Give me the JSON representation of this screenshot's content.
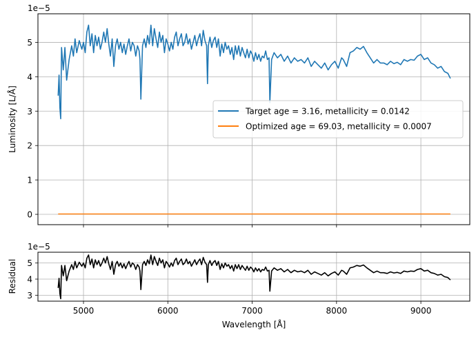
{
  "chart_data": [
    {
      "type": "line",
      "panel": "top",
      "ylabel": "Luminosity [L/Å]",
      "xlabel": "",
      "offset_text": "1e−5",
      "grid": true,
      "xlim": [
        4460,
        9580
      ],
      "ylim": [
        -0.3,
        5.83
      ],
      "x_ticks": [
        5000,
        6000,
        7000,
        8000,
        9000
      ],
      "y_ticks": [
        0,
        1,
        2,
        3,
        4,
        5
      ],
      "y_tick_labels": [
        "0",
        "1",
        "2",
        "3",
        "4",
        "5"
      ],
      "legend_position": "center-right",
      "legend": [
        "Target age = 3.16, metallicity = 0.0142",
        "Optimized age = 69.03, metallicity = 0.0007"
      ],
      "series": [
        {
          "name": "Target age = 3.16, metallicity = 0.0142",
          "color": "#1f77b4",
          "points": [
            [
              4700,
              3.45
            ],
            [
              4710,
              4.05
            ],
            [
              4720,
              3.1
            ],
            [
              4730,
              2.78
            ],
            [
              4740,
              4.85
            ],
            [
              4760,
              4.2
            ],
            [
              4780,
              4.85
            ],
            [
              4800,
              3.9
            ],
            [
              4830,
              4.5
            ],
            [
              4860,
              4.9
            ],
            [
              4880,
              4.6
            ],
            [
              4900,
              5.1
            ],
            [
              4920,
              4.7
            ],
            [
              4950,
              5.05
            ],
            [
              4980,
              4.8
            ],
            [
              5000,
              5.0
            ],
            [
              5020,
              4.7
            ],
            [
              5040,
              5.3
            ],
            [
              5060,
              5.5
            ],
            [
              5080,
              4.9
            ],
            [
              5100,
              5.25
            ],
            [
              5120,
              4.7
            ],
            [
              5140,
              5.2
            ],
            [
              5160,
              4.9
            ],
            [
              5180,
              5.15
            ],
            [
              5200,
              4.8
            ],
            [
              5220,
              5.0
            ],
            [
              5240,
              5.3
            ],
            [
              5260,
              5.0
            ],
            [
              5280,
              5.4
            ],
            [
              5300,
              4.95
            ],
            [
              5320,
              4.6
            ],
            [
              5340,
              5.1
            ],
            [
              5360,
              4.3
            ],
            [
              5380,
              4.9
            ],
            [
              5400,
              5.1
            ],
            [
              5420,
              4.8
            ],
            [
              5440,
              5.0
            ],
            [
              5460,
              4.7
            ],
            [
              5480,
              4.95
            ],
            [
              5500,
              4.65
            ],
            [
              5520,
              4.9
            ],
            [
              5540,
              5.1
            ],
            [
              5560,
              4.75
            ],
            [
              5580,
              5.0
            ],
            [
              5600,
              4.9
            ],
            [
              5620,
              4.6
            ],
            [
              5640,
              4.9
            ],
            [
              5660,
              4.75
            ],
            [
              5670,
              4.5
            ],
            [
              5680,
              3.35
            ],
            [
              5700,
              4.9
            ],
            [
              5720,
              5.1
            ],
            [
              5740,
              4.85
            ],
            [
              5760,
              5.2
            ],
            [
              5780,
              4.95
            ],
            [
              5800,
              5.5
            ],
            [
              5820,
              4.9
            ],
            [
              5840,
              5.4
            ],
            [
              5860,
              5.1
            ],
            [
              5880,
              4.85
            ],
            [
              5900,
              5.3
            ],
            [
              5920,
              5.0
            ],
            [
              5940,
              5.2
            ],
            [
              5960,
              4.7
            ],
            [
              5980,
              5.1
            ],
            [
              6000,
              4.95
            ],
            [
              6020,
              4.75
            ],
            [
              6040,
              5.0
            ],
            [
              6060,
              4.8
            ],
            [
              6080,
              5.15
            ],
            [
              6100,
              5.3
            ],
            [
              6120,
              4.9
            ],
            [
              6140,
              5.1
            ],
            [
              6160,
              5.25
            ],
            [
              6180,
              4.9
            ],
            [
              6200,
              5.0
            ],
            [
              6220,
              5.25
            ],
            [
              6240,
              4.95
            ],
            [
              6260,
              5.1
            ],
            [
              6280,
              4.8
            ],
            [
              6300,
              5.0
            ],
            [
              6320,
              5.2
            ],
            [
              6340,
              4.9
            ],
            [
              6360,
              5.1
            ],
            [
              6380,
              5.25
            ],
            [
              6400,
              4.9
            ],
            [
              6420,
              5.35
            ],
            [
              6440,
              5.05
            ],
            [
              6460,
              4.9
            ],
            [
              6470,
              3.8
            ],
            [
              6480,
              4.9
            ],
            [
              6500,
              5.15
            ],
            [
              6520,
              4.85
            ],
            [
              6540,
              5.05
            ],
            [
              6560,
              5.15
            ],
            [
              6580,
              4.85
            ],
            [
              6600,
              5.1
            ],
            [
              6620,
              4.6
            ],
            [
              6640,
              4.95
            ],
            [
              6660,
              4.7
            ],
            [
              6680,
              5.0
            ],
            [
              6700,
              4.8
            ],
            [
              6720,
              4.9
            ],
            [
              6740,
              4.65
            ],
            [
              6760,
              4.85
            ],
            [
              6780,
              4.5
            ],
            [
              6800,
              4.9
            ],
            [
              6820,
              4.65
            ],
            [
              6840,
              4.9
            ],
            [
              6860,
              4.6
            ],
            [
              6880,
              4.85
            ],
            [
              6900,
              4.7
            ],
            [
              6920,
              4.55
            ],
            [
              6940,
              4.8
            ],
            [
              6960,
              4.55
            ],
            [
              6980,
              4.75
            ],
            [
              7000,
              4.65
            ],
            [
              7020,
              4.45
            ],
            [
              7040,
              4.7
            ],
            [
              7060,
              4.5
            ],
            [
              7080,
              4.65
            ],
            [
              7100,
              4.45
            ],
            [
              7120,
              4.6
            ],
            [
              7140,
              4.55
            ],
            [
              7160,
              4.75
            ],
            [
              7180,
              4.5
            ],
            [
              7200,
              4.55
            ],
            [
              7210,
              3.25
            ],
            [
              7230,
              4.5
            ],
            [
              7260,
              4.7
            ],
            [
              7300,
              4.55
            ],
            [
              7340,
              4.65
            ],
            [
              7380,
              4.45
            ],
            [
              7420,
              4.6
            ],
            [
              7460,
              4.4
            ],
            [
              7500,
              4.55
            ],
            [
              7540,
              4.45
            ],
            [
              7580,
              4.5
            ],
            [
              7620,
              4.4
            ],
            [
              7660,
              4.55
            ],
            [
              7700,
              4.3
            ],
            [
              7740,
              4.45
            ],
            [
              7780,
              4.35
            ],
            [
              7820,
              4.25
            ],
            [
              7860,
              4.4
            ],
            [
              7900,
              4.2
            ],
            [
              7940,
              4.35
            ],
            [
              7980,
              4.45
            ],
            [
              8020,
              4.25
            ],
            [
              8060,
              4.55
            ],
            [
              8080,
              4.5
            ],
            [
              8120,
              4.3
            ],
            [
              8160,
              4.7
            ],
            [
              8200,
              4.75
            ],
            [
              8240,
              4.85
            ],
            [
              8280,
              4.8
            ],
            [
              8320,
              4.88
            ],
            [
              8360,
              4.7
            ],
            [
              8400,
              4.55
            ],
            [
              8440,
              4.4
            ],
            [
              8480,
              4.5
            ],
            [
              8520,
              4.4
            ],
            [
              8560,
              4.4
            ],
            [
              8600,
              4.35
            ],
            [
              8640,
              4.45
            ],
            [
              8680,
              4.38
            ],
            [
              8720,
              4.42
            ],
            [
              8760,
              4.35
            ],
            [
              8800,
              4.5
            ],
            [
              8840,
              4.45
            ],
            [
              8880,
              4.5
            ],
            [
              8920,
              4.48
            ],
            [
              8960,
              4.6
            ],
            [
              9000,
              4.65
            ],
            [
              9040,
              4.5
            ],
            [
              9080,
              4.55
            ],
            [
              9120,
              4.4
            ],
            [
              9160,
              4.35
            ],
            [
              9200,
              4.25
            ],
            [
              9240,
              4.3
            ],
            [
              9280,
              4.15
            ],
            [
              9320,
              4.1
            ],
            [
              9350,
              3.95
            ]
          ]
        },
        {
          "name": "Optimized age = 69.03, metallicity = 0.0007",
          "color": "#ff7f0e",
          "points": [
            [
              4700,
              0.01
            ],
            [
              9350,
              0.01
            ]
          ]
        }
      ]
    },
    {
      "type": "line",
      "panel": "bottom",
      "ylabel": "Residual",
      "xlabel": "Wavelength [Å]",
      "offset_text": "1e−5",
      "grid": true,
      "xlim": [
        4460,
        9580
      ],
      "ylim": [
        2.63,
        5.67
      ],
      "x_ticks": [
        5000,
        6000,
        7000,
        8000,
        9000
      ],
      "x_tick_labels": [
        "5000",
        "6000",
        "7000",
        "8000",
        "9000"
      ],
      "y_ticks": [
        3,
        4,
        5
      ],
      "y_tick_labels": [
        "3",
        "4",
        "5"
      ],
      "series": [
        {
          "name": "Residual",
          "color": "#000000",
          "source": "top.series.0"
        }
      ]
    }
  ]
}
